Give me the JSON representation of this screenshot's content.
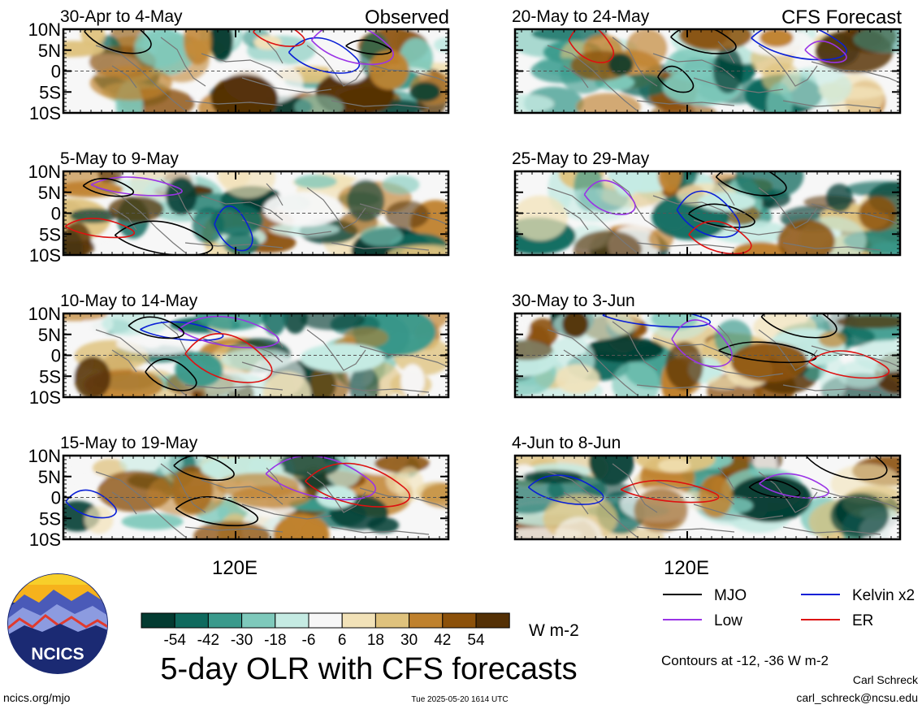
{
  "figure": {
    "title": "5-day OLR with CFS forecasts",
    "units": "W m-2",
    "observed_label": "Observed",
    "forecast_label": "CFS Forecast",
    "contour_note": "Contours at -12, -36 W m-2",
    "author": "Carl Schreck",
    "email": "carl_schreck@ncsu.edu",
    "site": "ncics.org/mjo",
    "timestamp": "Tue 2025-05-20 1614 UTC",
    "logo_text": "NCICS"
  },
  "chart_data": {
    "type": "heatmap",
    "lat_ticks": [
      "10N",
      "5N",
      "0",
      "5S",
      "10S"
    ],
    "lon_tick": "120E",
    "panels": [
      {
        "label": "30-Apr to 4-May",
        "group": "observed"
      },
      {
        "label": "5-May to 9-May",
        "group": "observed"
      },
      {
        "label": "10-May to 14-May",
        "group": "observed"
      },
      {
        "label": "15-May to 19-May",
        "group": "observed"
      },
      {
        "label": "20-May to 24-May",
        "group": "forecast"
      },
      {
        "label": "25-May to 29-May",
        "group": "forecast"
      },
      {
        "label": "30-May to 3-Jun",
        "group": "forecast"
      },
      {
        "label": "4-Jun to 8-Jun",
        "group": "forecast"
      }
    ],
    "colorbar": {
      "tick_labels": [
        "-54",
        "-42",
        "-30",
        "-18",
        "-6",
        "6",
        "18",
        "30",
        "42",
        "54"
      ],
      "colors": [
        "#033b31",
        "#0f6a5e",
        "#3a9a8c",
        "#7ec9bb",
        "#c5ebe3",
        "#f7f7f7",
        "#f2e2b8",
        "#dfc27d",
        "#bf812d",
        "#8c510a",
        "#543005"
      ]
    },
    "legend": [
      {
        "label": "MJO",
        "color": "#000000"
      },
      {
        "label": "Kelvin x2",
        "color": "#0a1fd6"
      },
      {
        "label": "Low",
        "color": "#9a33e6"
      },
      {
        "label": "ER",
        "color": "#dd1111"
      }
    ]
  }
}
